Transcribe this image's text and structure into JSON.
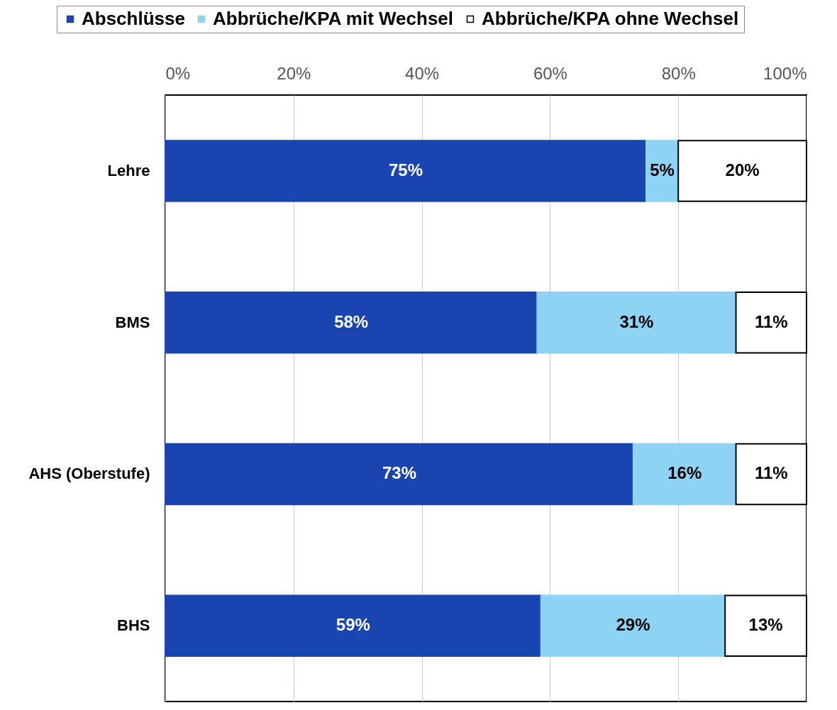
{
  "chart_data": {
    "type": "bar",
    "orientation": "horizontal",
    "stacked": true,
    "categories": [
      "Lehre",
      "BMS",
      "AHS (Oberstufe)",
      "BHS"
    ],
    "series": [
      {
        "name": "Abschlüsse",
        "color": "#1a45b0",
        "values": [
          75,
          58,
          73,
          58.6
        ],
        "value_labels": [
          "75%",
          "58%",
          "73%",
          "59%"
        ]
      },
      {
        "name": "Abbrüche/KPA mit Wechsel",
        "color": "#8ed3f4",
        "values": [
          5,
          31,
          16,
          28.7
        ],
        "value_labels": [
          "5%",
          "31%",
          "16%",
          "29%"
        ]
      },
      {
        "name": "Abbrüche/KPA ohne Wechsel",
        "color": "#ffffff",
        "values": [
          20,
          11,
          11,
          12.7
        ],
        "value_labels": [
          "20%",
          "11%",
          "11%",
          "13%"
        ]
      }
    ],
    "xlim": [
      0,
      100
    ],
    "xticks": [
      {
        "value": 0,
        "label": "0%"
      },
      {
        "value": 20,
        "label": "20%"
      },
      {
        "value": 40,
        "label": "40%"
      },
      {
        "value": 60,
        "label": "60%"
      },
      {
        "value": 80,
        "label": "80%"
      },
      {
        "value": 100,
        "label": "100%"
      }
    ],
    "grid": "x",
    "legend": "top"
  }
}
